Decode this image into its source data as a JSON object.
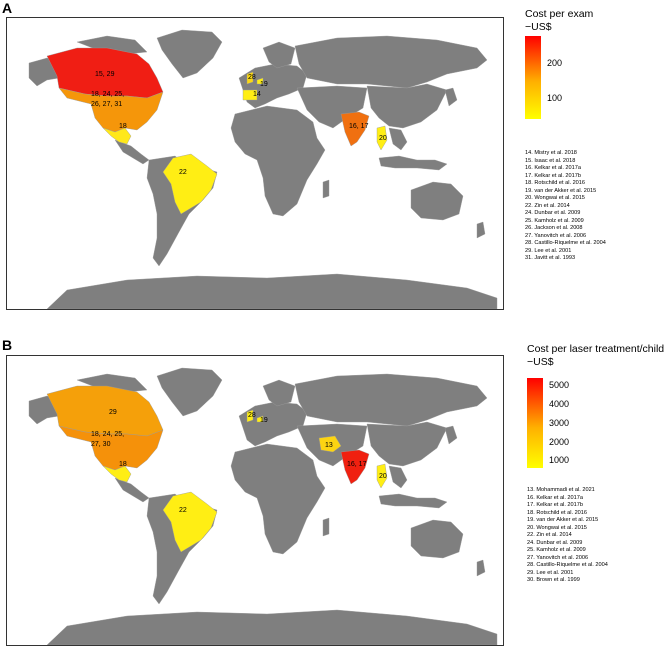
{
  "panels": [
    {
      "letter": "A",
      "legend_title_line1": "Cost per exam",
      "legend_title_line2": "−US$",
      "legend_ticks": [
        "200",
        "100"
      ],
      "references": [
        "14. Mistry et al. 2018",
        "15. Isaac et al. 2018",
        "16. Kelkar et al. 2017a",
        "17. Kelkar et al. 2017b",
        "18. Rotschild et al. 2016",
        "19. van der Akker et al. 2015",
        "20. Wongwai et al. 2015",
        "22. Zin et al. 2014",
        "24. Dunbar et al. 2009",
        "25. Kamholz et al. 2009",
        "26. Jackson et al. 2008",
        "27. Yanovitch et al. 2006",
        "28. Castillo-Riquelme et al. 2004",
        "29. Lee et al. 2001",
        "31. Javitt et al. 1993"
      ],
      "labels": {
        "canada": "15, 29",
        "usa_1": "18, 24, 25,",
        "usa_2": "26, 27, 31",
        "mexico": "18",
        "brazil": "22",
        "uk": "28",
        "netherlands": "19",
        "spain": "14",
        "india": "16, 17",
        "thailand": "20"
      },
      "colors": {
        "canada": "#f01e14",
        "usa": "#f5960a",
        "mexico": "#ffe81a",
        "brazil": "#ffee14",
        "uk": "#fcd812",
        "netherlands": "#ffee14",
        "spain": "#ffee14",
        "india": "#f07010",
        "thailand": "#ffee14"
      }
    },
    {
      "letter": "B",
      "legend_title_line1": "Cost per laser treatment/child",
      "legend_title_line2": "−US$",
      "legend_ticks": [
        "5000",
        "4000",
        "3000",
        "2000",
        "1000"
      ],
      "references": [
        "13. Mohammadi et al. 2021",
        "16. Kelkar et al. 2017a",
        "17. Kelkar et al. 2017b",
        "18. Rotschild et al. 2016",
        "19. van der Akker et al. 2015",
        "20. Wongwai et al. 2015",
        "22. Zin et al. 2014",
        "24. Dunbar et al. 2009",
        "25. Kamholz et al. 2009",
        "27. Yanovitch et al. 2006",
        "28. Castillo-Riquelme et al. 2004",
        "29. Lee et al. 2001",
        "30. Brown et al. 1999"
      ],
      "labels": {
        "canada": "29",
        "usa_1": "18, 24, 25,",
        "usa_2": "27, 30",
        "mexico": "18",
        "brazil": "22",
        "uk": "28",
        "netherlands": "19",
        "iran": "13",
        "india": "16, 17",
        "thailand": "20"
      },
      "colors": {
        "canada": "#f5a00a",
        "usa": "#f5910a",
        "mexico": "#ffee14",
        "brazil": "#ffee14",
        "uk": "#ffee14",
        "netherlands": "#ffee14",
        "iran": "#fcd412",
        "india": "#f02010",
        "thailand": "#ffee14"
      }
    }
  ],
  "base_land_color": "#7f7f7f",
  "gradient_low": "#ffff00",
  "gradient_high": "#ff0000"
}
